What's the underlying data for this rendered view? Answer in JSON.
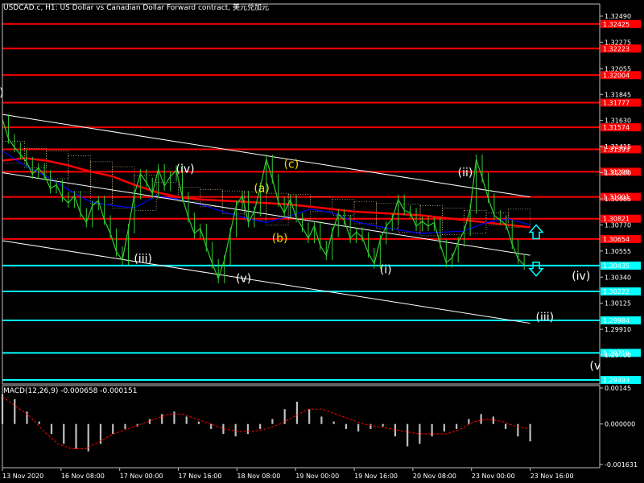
{
  "title": "USDCAD.c, H1:  US Dollar vs Canadian Dollar Forward contract, 美元兑加元",
  "macd_label": "MACD(12,26,9) -0.000658 -0.000151",
  "colors": {
    "background": "#000000",
    "price": "#32cd32",
    "red_level": "#ff0000",
    "cyan_level": "#00ffff",
    "trend": "#ffffff",
    "ma_red": "#ff0000",
    "ma_blue": "#0000ff",
    "cloud": "#ffdead",
    "wave_white": "#ffffff",
    "wave_yellow": "#ffd700",
    "macd_signal": "#ff0000",
    "macd_hist": "#c0c0c0"
  },
  "chart_data": {
    "type": "line",
    "instrument": "USDCAD.c",
    "timeframe": "H1",
    "price_range": [
      1.29493,
      1.3249
    ],
    "y_ticks": [
      1.3249,
      1.32275,
      1.32055,
      1.31845,
      1.3163,
      1.31415,
      1.312,
      1.30985,
      1.3077,
      1.30555,
      1.3034,
      1.30125,
      1.2991,
      1.297
    ],
    "red_levels": [
      1.32425,
      1.32223,
      1.32004,
      1.31777,
      1.31574,
      1.31393,
      1.31208,
      1.31001,
      1.30821,
      1.30654
    ],
    "cyan_levels": [
      1.30435,
      1.30222,
      1.29984,
      1.29716,
      1.29493
    ],
    "x_labels": [
      "13 Nov 2020",
      "16 Nov 08:00",
      "17 Nov 00:00",
      "17 Nov 16:00",
      "18 Nov 08:00",
      "19 Nov 00:00",
      "19 Nov 16:00",
      "20 Nov 08:00",
      "23 Nov 00:00",
      "23 Nov 16:00"
    ],
    "price_close": [
      1.3164,
      1.3148,
      1.3141,
      1.3135,
      1.3129,
      1.3119,
      1.3124,
      1.3118,
      1.3107,
      1.311,
      1.31,
      1.3095,
      1.3101,
      1.3087,
      1.3079,
      1.3093,
      1.3097,
      1.3081,
      1.307,
      1.3055,
      1.3048,
      1.3074,
      1.3102,
      1.3119,
      1.3112,
      1.3103,
      1.3123,
      1.3109,
      1.3117,
      1.3122,
      1.31,
      1.3083,
      1.307,
      1.3074,
      1.3059,
      1.3045,
      1.3033,
      1.3048,
      1.3071,
      1.3093,
      1.3101,
      1.3079,
      1.3088,
      1.3108,
      1.3131,
      1.3115,
      1.3096,
      1.3087,
      1.3098,
      1.3083,
      1.3075,
      1.3066,
      1.3076,
      1.306,
      1.3052,
      1.3071,
      1.3086,
      1.3081,
      1.3066,
      1.3071,
      1.3067,
      1.3054,
      1.3045,
      1.3065,
      1.3076,
      1.3082,
      1.3098,
      1.3089,
      1.3087,
      1.3076,
      1.308,
      1.3076,
      1.3079,
      1.3061,
      1.3046,
      1.305,
      1.3063,
      1.3072,
      1.309,
      1.3131,
      1.3116,
      1.3099,
      1.3085,
      1.3081,
      1.3077,
      1.3061,
      1.3049,
      1.3044
    ],
    "ma_red": [
      1.313,
      1.3132,
      1.313,
      1.3126,
      1.3121,
      1.3117,
      1.311,
      1.3104,
      1.31,
      1.3098,
      1.3097,
      1.3096,
      1.3095,
      1.3094,
      1.3092,
      1.309,
      1.3088,
      1.3087,
      1.3086,
      1.3085,
      1.3083,
      1.3081,
      1.3079,
      1.3077,
      1.3075
    ],
    "ma_blue": [
      1.3138,
      1.3126,
      1.3117,
      1.3106,
      1.3096,
      1.3093,
      1.3091,
      1.3101,
      1.3098,
      1.3094,
      1.3088,
      1.3083,
      1.3079,
      1.3084,
      1.309,
      1.3087,
      1.308,
      1.3076,
      1.3073,
      1.307,
      1.3071,
      1.3072,
      1.3079,
      1.3082,
      1.3077
    ],
    "trend_lines": [
      [
        {
          "bar": 0,
          "p": 1.3168
        },
        {
          "bar": 88,
          "p": 1.31
        }
      ],
      [
        {
          "bar": 0,
          "p": 1.312
        },
        {
          "bar": 88,
          "p": 1.3052
        }
      ],
      [
        {
          "bar": 0,
          "p": 1.3064
        },
        {
          "bar": 88,
          "p": 1.2996
        }
      ]
    ],
    "wave_labels": [
      {
        "text": "I)",
        "bar": 0,
        "p": 1.3183,
        "color": "white"
      },
      {
        "text": "(iv)",
        "bar": 30,
        "p": 1.312,
        "color": "white"
      },
      {
        "text": "(c)",
        "bar": 48,
        "p": 1.3124,
        "color": "yellow"
      },
      {
        "text": "(ii)",
        "bar": 77,
        "p": 1.3117,
        "color": "white"
      },
      {
        "text": "(a)",
        "bar": 43,
        "p": 1.3104,
        "color": "yellow"
      },
      {
        "text": "(b)",
        "bar": 46,
        "p": 1.3063,
        "color": "yellow"
      },
      {
        "text": "(iii)",
        "bar": 23,
        "p": 1.3046,
        "color": "white"
      },
      {
        "text": "(v)",
        "bar": 40,
        "p": 1.303,
        "color": "white"
      },
      {
        "text": "(i)",
        "bar": 64,
        "p": 1.3037,
        "color": "white"
      },
      {
        "text": "(iv)",
        "bar": 96,
        "p": 1.3032,
        "color": "white"
      },
      {
        "text": "(iii)",
        "bar": 90,
        "p": 1.2998,
        "color": "white"
      },
      {
        "text": "(v",
        "bar": 99,
        "p": 1.2958,
        "color": "white"
      }
    ],
    "arrows": [
      {
        "dir": "up",
        "bar": 89,
        "p": 1.3071,
        "color": "cyan"
      },
      {
        "dir": "down",
        "bar": 89,
        "p": 1.3041,
        "color": "cyan"
      }
    ],
    "macd": {
      "name": "MACD(12,26,9)",
      "main_value": -0.000658,
      "signal_value": -0.000151,
      "y_ticks": [
        0.00145,
        0.0,
        -0.001631
      ],
      "range": [
        -0.001631,
        0.00145
      ],
      "histogram": [
        0.0012,
        0.001,
        0.0005,
        0.0001,
        -0.0004,
        -0.0008,
        -0.001,
        -0.0011,
        -0.0008,
        -0.0004,
        -0.0002,
        -0.0001,
        0.0002,
        0.0004,
        0.0005,
        0.0003,
        0.0001,
        -0.0002,
        -0.0004,
        -0.0005,
        -0.0004,
        -0.0002,
        0.0002,
        0.0006,
        0.0009,
        0.0006,
        0.0003,
        0.0001,
        -0.0002,
        -0.0003,
        -0.0002,
        -0.0001,
        -0.0005,
        -0.0009,
        -0.0008,
        -0.0005,
        -0.0003,
        -0.0002,
        0.0002,
        0.0004,
        0.0003,
        -0.0002,
        -0.0005,
        -0.0007
      ],
      "signal": [
        0.0011,
        0.0007,
        0.0003,
        -0.0003,
        -0.0008,
        -0.001,
        -0.001,
        -0.0007,
        -0.0004,
        -0.0002,
        0.0,
        0.0002,
        0.0004,
        0.0004,
        0.0002,
        0.0,
        -0.0002,
        -0.0003,
        -0.0003,
        -0.0002,
        0.0,
        0.0003,
        0.0006,
        0.0006,
        0.0004,
        0.0002,
        0.0,
        -0.0001,
        -0.0002,
        -0.0003,
        -0.0004,
        -0.0004,
        -0.0004,
        -0.0002,
        0.0001,
        0.0002,
        0.0001,
        -0.0001,
        -0.0002
      ]
    }
  }
}
